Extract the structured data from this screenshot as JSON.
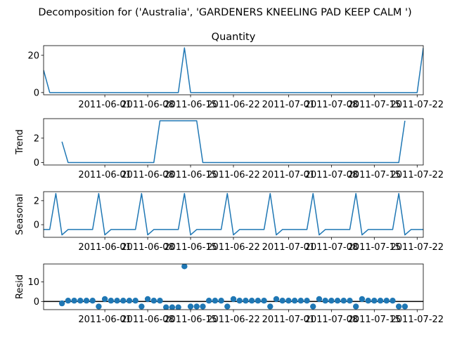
{
  "suptitle": "Decomposition for ('Australia', 'GARDENERS KNEELING PAD KEEP CALM ')",
  "chart_data": {
    "type": "line",
    "x_dates": [
      "2011-05-22",
      "2011-05-23",
      "2011-05-24",
      "2011-05-25",
      "2011-05-26",
      "2011-05-27",
      "2011-05-28",
      "2011-05-29",
      "2011-05-30",
      "2011-05-31",
      "2011-06-01",
      "2011-06-02",
      "2011-06-03",
      "2011-06-04",
      "2011-06-05",
      "2011-06-06",
      "2011-06-07",
      "2011-06-08",
      "2011-06-09",
      "2011-06-10",
      "2011-06-11",
      "2011-06-12",
      "2011-06-13",
      "2011-06-14",
      "2011-06-15",
      "2011-06-16",
      "2011-06-17",
      "2011-06-18",
      "2011-06-19",
      "2011-06-20",
      "2011-06-21",
      "2011-06-22",
      "2011-06-23",
      "2011-06-24",
      "2011-06-25",
      "2011-06-26",
      "2011-06-27",
      "2011-06-28",
      "2011-06-29",
      "2011-06-30",
      "2011-07-01",
      "2011-07-02",
      "2011-07-03",
      "2011-07-04",
      "2011-07-05",
      "2011-07-06",
      "2011-07-07",
      "2011-07-08",
      "2011-07-09",
      "2011-07-10",
      "2011-07-11",
      "2011-07-12",
      "2011-07-13",
      "2011-07-14",
      "2011-07-15",
      "2011-07-16",
      "2011-07-17",
      "2011-07-18",
      "2011-07-19",
      "2011-07-20",
      "2011-07-21",
      "2011-07-22",
      "2011-07-23"
    ],
    "x_tick_labels": [
      "2011-06-01",
      "2011-06-08",
      "2011-06-15",
      "2011-06-22",
      "2011-07-01",
      "2011-07-08",
      "2011-07-15",
      "2011-07-22"
    ],
    "panels": [
      {
        "name": "Quantity",
        "title": "Quantity",
        "ylabel": "",
        "style": "line",
        "ylim": [
          -1.2,
          25.2
        ],
        "yticks": [
          0,
          20
        ],
        "values": [
          12,
          0,
          0,
          0,
          0,
          0,
          0,
          0,
          0,
          0,
          0,
          0,
          0,
          0,
          0,
          0,
          0,
          0,
          0,
          0,
          0,
          0,
          0,
          24,
          0,
          0,
          0,
          0,
          0,
          0,
          0,
          0,
          0,
          0,
          0,
          0,
          0,
          0,
          0,
          0,
          0,
          0,
          0,
          0,
          0,
          0,
          0,
          0,
          0,
          0,
          0,
          0,
          0,
          0,
          0,
          0,
          0,
          0,
          0,
          0,
          0,
          0,
          24
        ]
      },
      {
        "name": "Trend",
        "title": "",
        "ylabel": "Trend",
        "style": "line",
        "ylim": [
          -0.2,
          3.6
        ],
        "yticks": [
          0,
          2
        ],
        "values": [
          null,
          null,
          null,
          1.71,
          0,
          0,
          0,
          0,
          0,
          0,
          0,
          0,
          0,
          0,
          0,
          0,
          0,
          0,
          0,
          3.43,
          3.43,
          3.43,
          3.43,
          3.43,
          3.43,
          3.43,
          0,
          0,
          0,
          0,
          0,
          0,
          0,
          0,
          0,
          0,
          0,
          0,
          0,
          0,
          0,
          0,
          0,
          0,
          0,
          0,
          0,
          0,
          0,
          0,
          0,
          0,
          0,
          0,
          0,
          0,
          0,
          0,
          0,
          3.43,
          null,
          null,
          null
        ]
      },
      {
        "name": "Seasonal",
        "title": "",
        "ylabel": "Seasonal",
        "style": "line",
        "ylim": [
          -1.05,
          2.75
        ],
        "yticks": [
          0,
          2
        ],
        "values": [
          -0.4,
          -0.4,
          2.6,
          -0.85,
          -0.4,
          -0.4,
          -0.4,
          -0.4,
          -0.4,
          2.6,
          -0.85,
          -0.4,
          -0.4,
          -0.4,
          -0.4,
          -0.4,
          2.6,
          -0.85,
          -0.4,
          -0.4,
          -0.4,
          -0.4,
          -0.4,
          2.6,
          -0.85,
          -0.4,
          -0.4,
          -0.4,
          -0.4,
          -0.4,
          2.6,
          -0.85,
          -0.4,
          -0.4,
          -0.4,
          -0.4,
          -0.4,
          2.6,
          -0.85,
          -0.4,
          -0.4,
          -0.4,
          -0.4,
          -0.4,
          2.6,
          -0.85,
          -0.4,
          -0.4,
          -0.4,
          -0.4,
          -0.4,
          2.6,
          -0.85,
          -0.4,
          -0.4,
          -0.4,
          -0.4,
          -0.4,
          2.6,
          -0.85,
          -0.4,
          -0.4,
          -0.4
        ]
      },
      {
        "name": "Resid",
        "title": "",
        "ylabel": "Resid",
        "style": "scatter",
        "ylim": [
          -4.2,
          19.2
        ],
        "yticks": [
          0,
          10
        ],
        "baseline": 0,
        "values": [
          null,
          null,
          null,
          -1,
          0.4,
          0.4,
          0.4,
          0.4,
          0.4,
          -2.6,
          1.2,
          0.4,
          0.4,
          0.4,
          0.4,
          0.4,
          -2.6,
          1.2,
          0.4,
          0.4,
          -3,
          -3,
          -3,
          18,
          -2.6,
          -2.6,
          -2.6,
          0.4,
          0.4,
          0.4,
          -2.6,
          1.2,
          0.4,
          0.4,
          0.4,
          0.4,
          0.4,
          -2.6,
          1.2,
          0.4,
          0.4,
          0.4,
          0.4,
          0.4,
          -2.6,
          1.2,
          0.4,
          0.4,
          0.4,
          0.4,
          0.4,
          -2.6,
          1.2,
          0.4,
          0.4,
          0.4,
          0.4,
          0.4,
          -2.6,
          -2.6,
          null,
          null,
          null
        ]
      }
    ],
    "line_color": "#1f77b4",
    "grid": false
  }
}
